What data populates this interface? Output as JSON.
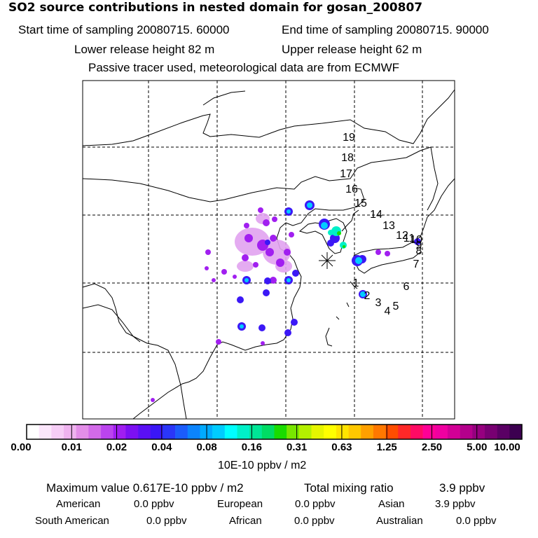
{
  "title": "SO2 source contributions in nested domain for gosan_200807",
  "header": {
    "start_label": "Start time of sampling 20080715. 60000",
    "end_label": "End time of sampling 20080715. 90000",
    "lower_label": "Lower release height   82 m",
    "upper_label": "Upper release height   62 m",
    "note": "Passive tracer used, meteorological data are from ECMWF"
  },
  "map": {
    "receptor_symbol": "*",
    "track_labels": [
      "19",
      "18",
      "17",
      "16",
      "15",
      "14",
      "13",
      "12",
      "11",
      "10",
      "9",
      "8",
      "7",
      "6",
      "5",
      "4",
      "3",
      "2",
      "1"
    ]
  },
  "colorbar": {
    "colors": [
      "#ffffff",
      "#fbe6fb",
      "#f6cdf6",
      "#efb3ef",
      "#e38ee8",
      "#d26ae8",
      "#bb44ee",
      "#a01ef0",
      "#7c10f2",
      "#5a10f4",
      "#3a16f6",
      "#2a36f8",
      "#1b5cfb",
      "#0c84fd",
      "#00aaff",
      "#00ccff",
      "#00ffff",
      "#00f0c8",
      "#00e696",
      "#00dc64",
      "#19dc00",
      "#78e600",
      "#b4f000",
      "#e6f500",
      "#ffff00",
      "#ffe400",
      "#ffc800",
      "#ffa000",
      "#ff7800",
      "#ff4d00",
      "#ff2828",
      "#ff0a64",
      "#ff0096",
      "#f000a0",
      "#d20096",
      "#b4008c",
      "#96007f",
      "#780072",
      "#5a0064",
      "#3c0050"
    ],
    "ticks": [
      "0.00",
      "0.01",
      "0.02",
      "0.04",
      "0.08",
      "0.16",
      "0.31",
      "0.63",
      "1.25",
      "2.50",
      "5.00",
      "10.00"
    ],
    "units": "10E-10 ppbv / m2"
  },
  "summary": {
    "max_label": "Maximum value  0.617E-10 ppbv / m2",
    "total_label": "Total mixing ratio",
    "total_value": "3.9 ppbv",
    "regions": [
      {
        "name": "American",
        "value": "0.0 ppbv"
      },
      {
        "name": "European",
        "value": "0.0 ppbv"
      },
      {
        "name": "Asian",
        "value": "3.9 ppbv"
      },
      {
        "name": "South American",
        "value": "0.0 ppbv"
      },
      {
        "name": "African",
        "value": "0.0 ppbv"
      },
      {
        "name": "Australian",
        "value": "0.0 ppbv"
      }
    ]
  }
}
